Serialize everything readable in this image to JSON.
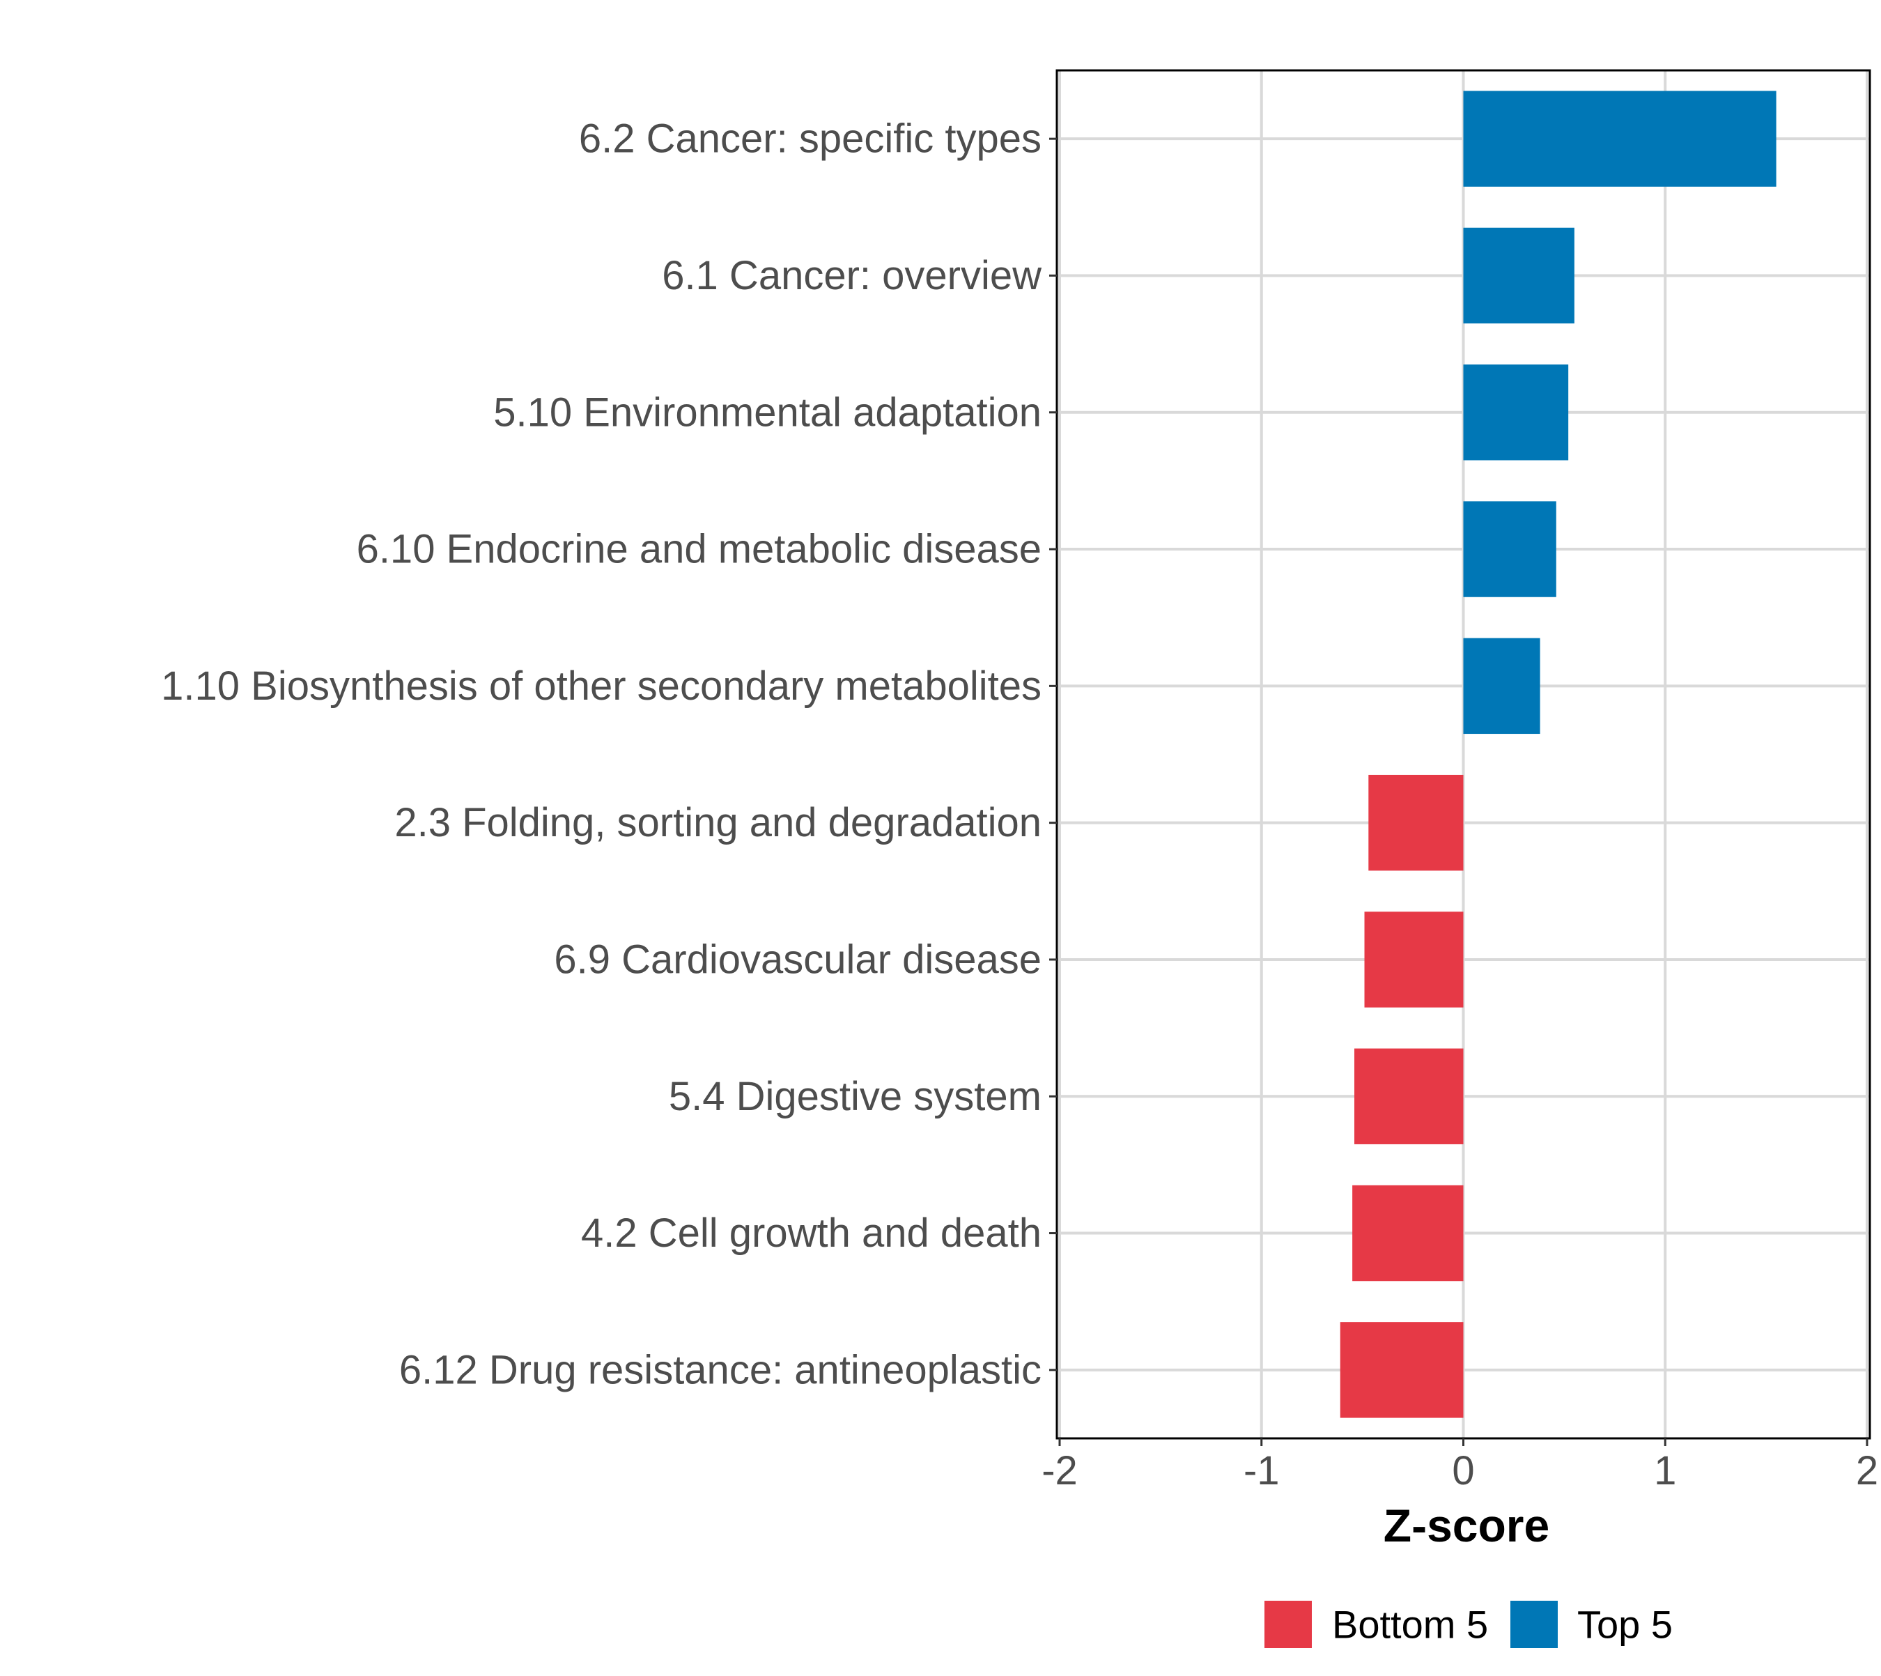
{
  "chart_data": {
    "type": "bar",
    "orientation": "horizontal",
    "title": "",
    "xlabel": "Z-score",
    "ylabel": "",
    "xlim": [
      -2,
      2
    ],
    "xticks": [
      -2,
      -1,
      0,
      1,
      2
    ],
    "xtick_labels": [
      "-2",
      "-1",
      "0",
      "1",
      "2"
    ],
    "grid": true,
    "categories": [
      "6.2 Cancer: specific types",
      "6.1 Cancer: overview",
      "5.10 Environmental adaptation",
      "6.10 Endocrine and metabolic disease",
      "1.10 Biosynthesis of other secondary metabolites",
      "2.3 Folding, sorting and degradation",
      "6.9 Cardiovascular disease",
      "5.4 Digestive system",
      "4.2 Cell growth and death",
      "6.12 Drug resistance: antineoplastic"
    ],
    "values": [
      1.55,
      0.55,
      0.52,
      0.46,
      0.38,
      -0.47,
      -0.49,
      -0.54,
      -0.55,
      -0.61
    ],
    "groups": [
      "Top 5",
      "Top 5",
      "Top 5",
      "Top 5",
      "Top 5",
      "Bottom 5",
      "Bottom 5",
      "Bottom 5",
      "Bottom 5",
      "Bottom 5"
    ],
    "legend": [
      {
        "label": "Bottom 5",
        "color": "#E63946"
      },
      {
        "label": "Top 5",
        "color": "#0077B6"
      }
    ],
    "legend_position": "bottom"
  }
}
